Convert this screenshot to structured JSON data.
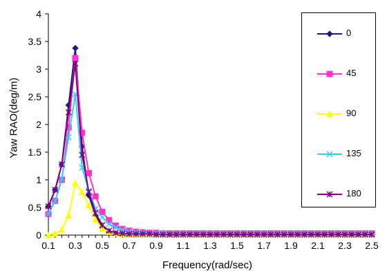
{
  "chart_data": {
    "type": "line",
    "title": "",
    "xlabel": "Frequency(rad/sec)",
    "ylabel": "Yaw RAO(deg/m)",
    "xlim": [
      0.1,
      2.5
    ],
    "ylim": [
      0,
      4
    ],
    "y_ticks": [
      "0",
      "0.5",
      "1",
      "1.5",
      "2",
      "2.5",
      "3",
      "3.5",
      "4"
    ],
    "x_ticks": [
      "0.1",
      "0.3",
      "0.5",
      "0.7",
      "0.9",
      "1.1",
      "1.3",
      "1.5",
      "1.7",
      "1.9",
      "2.1",
      "2.3",
      "2.5"
    ],
    "grid": false,
    "legend_position": "right",
    "x": [
      0.1,
      0.15,
      0.2,
      0.25,
      0.3,
      0.35,
      0.4,
      0.45,
      0.5,
      0.55,
      0.6,
      0.65,
      0.7,
      0.75,
      0.8,
      0.85,
      0.9,
      0.95,
      1.0,
      1.05,
      1.1,
      1.15,
      1.2,
      1.25,
      1.3,
      1.35,
      1.4,
      1.45,
      1.5,
      1.55,
      1.6,
      1.65,
      1.7,
      1.75,
      1.8,
      1.85,
      1.9,
      1.95,
      2.0,
      2.05,
      2.1,
      2.15,
      2.2,
      2.25,
      2.3,
      2.35,
      2.4,
      2.45,
      2.5
    ],
    "series": [
      {
        "name": "0",
        "color": "#1a1a7e",
        "marker": "diamond",
        "values": [
          0.52,
          0.82,
          1.28,
          2.35,
          3.38,
          1.6,
          0.72,
          0.35,
          0.14,
          0.06,
          0.03,
          0.02,
          0.02,
          0.01,
          0.01,
          0.01,
          0.01,
          0.01,
          0.01,
          0.01,
          0.01,
          0.01,
          0.01,
          0.01,
          0.01,
          0.01,
          0.01,
          0.01,
          0.01,
          0.01,
          0.01,
          0.01,
          0.01,
          0.01,
          0.01,
          0.01,
          0.01,
          0.01,
          0.01,
          0.01,
          0.01,
          0.01,
          0.01,
          0.01,
          0.01,
          0.01,
          0.01,
          0.01,
          0.01
        ]
      },
      {
        "name": "45",
        "color": "#ff33cc",
        "marker": "square",
        "values": [
          0.38,
          0.62,
          1.0,
          1.95,
          3.2,
          1.85,
          1.12,
          0.7,
          0.42,
          0.27,
          0.17,
          0.11,
          0.08,
          0.06,
          0.05,
          0.04,
          0.04,
          0.03,
          0.03,
          0.03,
          0.03,
          0.03,
          0.03,
          0.03,
          0.03,
          0.03,
          0.03,
          0.03,
          0.03,
          0.03,
          0.03,
          0.03,
          0.03,
          0.03,
          0.03,
          0.03,
          0.03,
          0.03,
          0.03,
          0.03,
          0.03,
          0.03,
          0.03,
          0.03,
          0.03,
          0.03,
          0.03,
          0.03,
          0.03
        ]
      },
      {
        "name": "90",
        "color": "#ffff00",
        "marker": "triangle",
        "values": [
          0.0,
          0.03,
          0.1,
          0.36,
          0.94,
          0.78,
          0.54,
          0.28,
          0.12,
          0.06,
          0.03,
          0.02,
          0.01,
          0.01,
          0.01,
          0.01,
          0.01,
          0.01,
          0.01,
          0.01,
          0.01,
          0.01,
          0.01,
          0.01,
          0.01,
          0.01,
          0.01,
          0.01,
          0.01,
          0.01,
          0.01,
          0.01,
          0.01,
          0.01,
          0.01,
          0.01,
          0.01,
          0.01,
          0.01,
          0.01,
          0.01,
          0.01,
          0.01,
          0.01,
          0.01,
          0.01,
          0.01,
          0.01,
          0.01
        ]
      },
      {
        "name": "135",
        "color": "#33ccff",
        "marker": "x",
        "values": [
          0.38,
          0.62,
          1.02,
          1.77,
          2.55,
          1.22,
          0.8,
          0.48,
          0.32,
          0.2,
          0.14,
          0.09,
          0.06,
          0.05,
          0.04,
          0.03,
          0.03,
          0.03,
          0.02,
          0.02,
          0.02,
          0.02,
          0.02,
          0.02,
          0.02,
          0.02,
          0.02,
          0.02,
          0.02,
          0.02,
          0.02,
          0.02,
          0.02,
          0.02,
          0.02,
          0.02,
          0.02,
          0.02,
          0.02,
          0.02,
          0.02,
          0.02,
          0.02,
          0.02,
          0.02,
          0.02,
          0.02,
          0.02,
          0.02
        ]
      },
      {
        "name": "180",
        "color": "#800080",
        "marker": "star",
        "values": [
          0.52,
          0.82,
          1.28,
          2.22,
          3.1,
          1.45,
          0.78,
          0.4,
          0.18,
          0.08,
          0.04,
          0.03,
          0.02,
          0.02,
          0.02,
          0.02,
          0.01,
          0.01,
          0.01,
          0.01,
          0.01,
          0.01,
          0.01,
          0.01,
          0.01,
          0.01,
          0.01,
          0.01,
          0.01,
          0.01,
          0.01,
          0.01,
          0.01,
          0.01,
          0.01,
          0.01,
          0.01,
          0.01,
          0.01,
          0.01,
          0.01,
          0.01,
          0.01,
          0.01,
          0.01,
          0.01,
          0.01,
          0.01,
          0.01
        ]
      }
    ]
  }
}
